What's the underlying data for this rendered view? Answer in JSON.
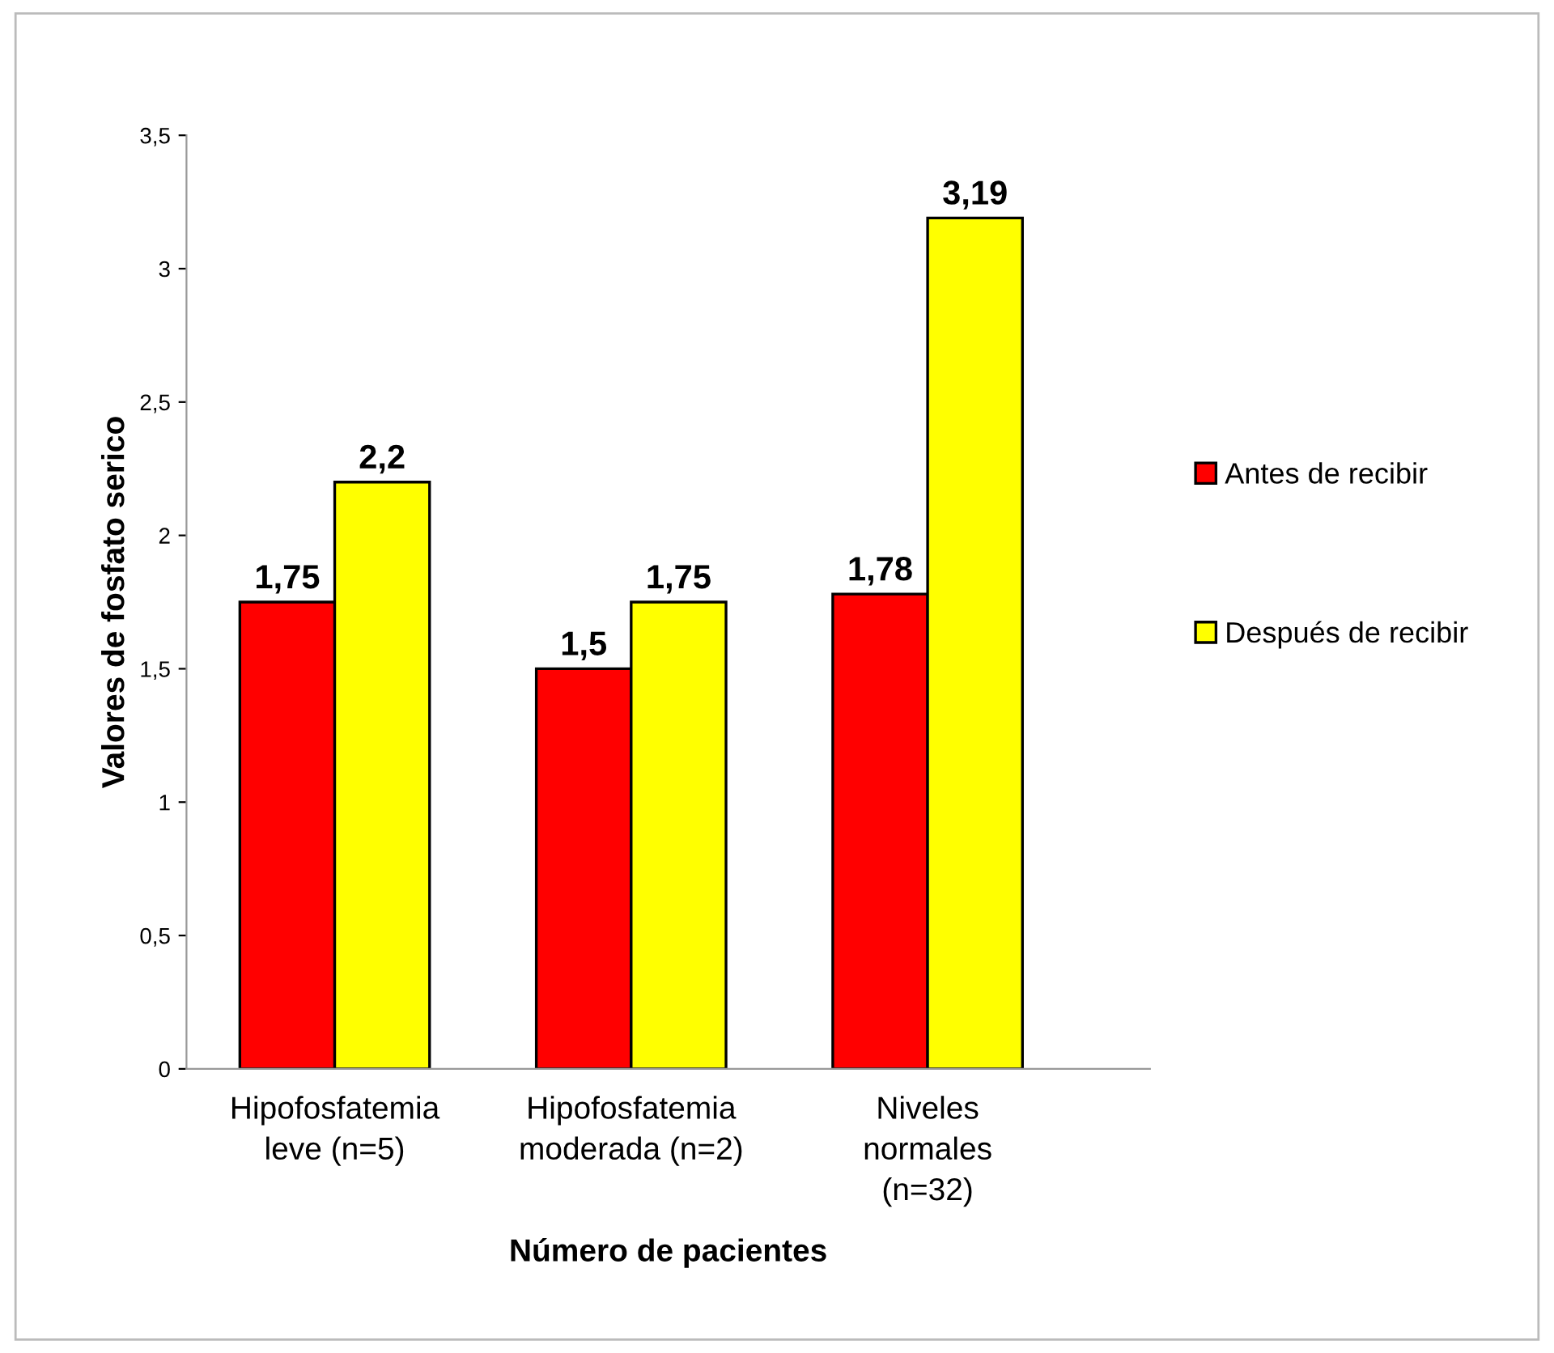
{
  "chart_data": {
    "type": "bar",
    "xlabel": "Número de pacientes",
    "ylabel": "Valores de fosfato serico",
    "categories": [
      "Hipofosfatemia\nleve (n=5)",
      "Hipofosfatemia\nmoderada (n=2)",
      "Niveles\nnormales\n(n=32)"
    ],
    "series": [
      {
        "name": "Antes de recibir",
        "color": "#ff0000",
        "values": [
          1.75,
          1.5,
          1.78
        ],
        "value_labels": [
          "1,75",
          "1,5",
          "1,78"
        ]
      },
      {
        "name": "Después de recibir",
        "color": "#ffff00",
        "values": [
          2.2,
          1.75,
          3.19
        ],
        "value_labels": [
          "2,2",
          "1,75",
          "3,19"
        ]
      }
    ],
    "ylim": [
      0,
      3.5
    ],
    "yticks": [
      0,
      {
        "value": 0.5,
        "label": "0,5"
      },
      1,
      {
        "value": 1.5,
        "label": "1,5"
      },
      2,
      {
        "value": 2.5,
        "label": "2,5"
      },
      3,
      {
        "value": 3.5,
        "label": "3,5"
      }
    ],
    "grid": false,
    "legend": "right"
  }
}
